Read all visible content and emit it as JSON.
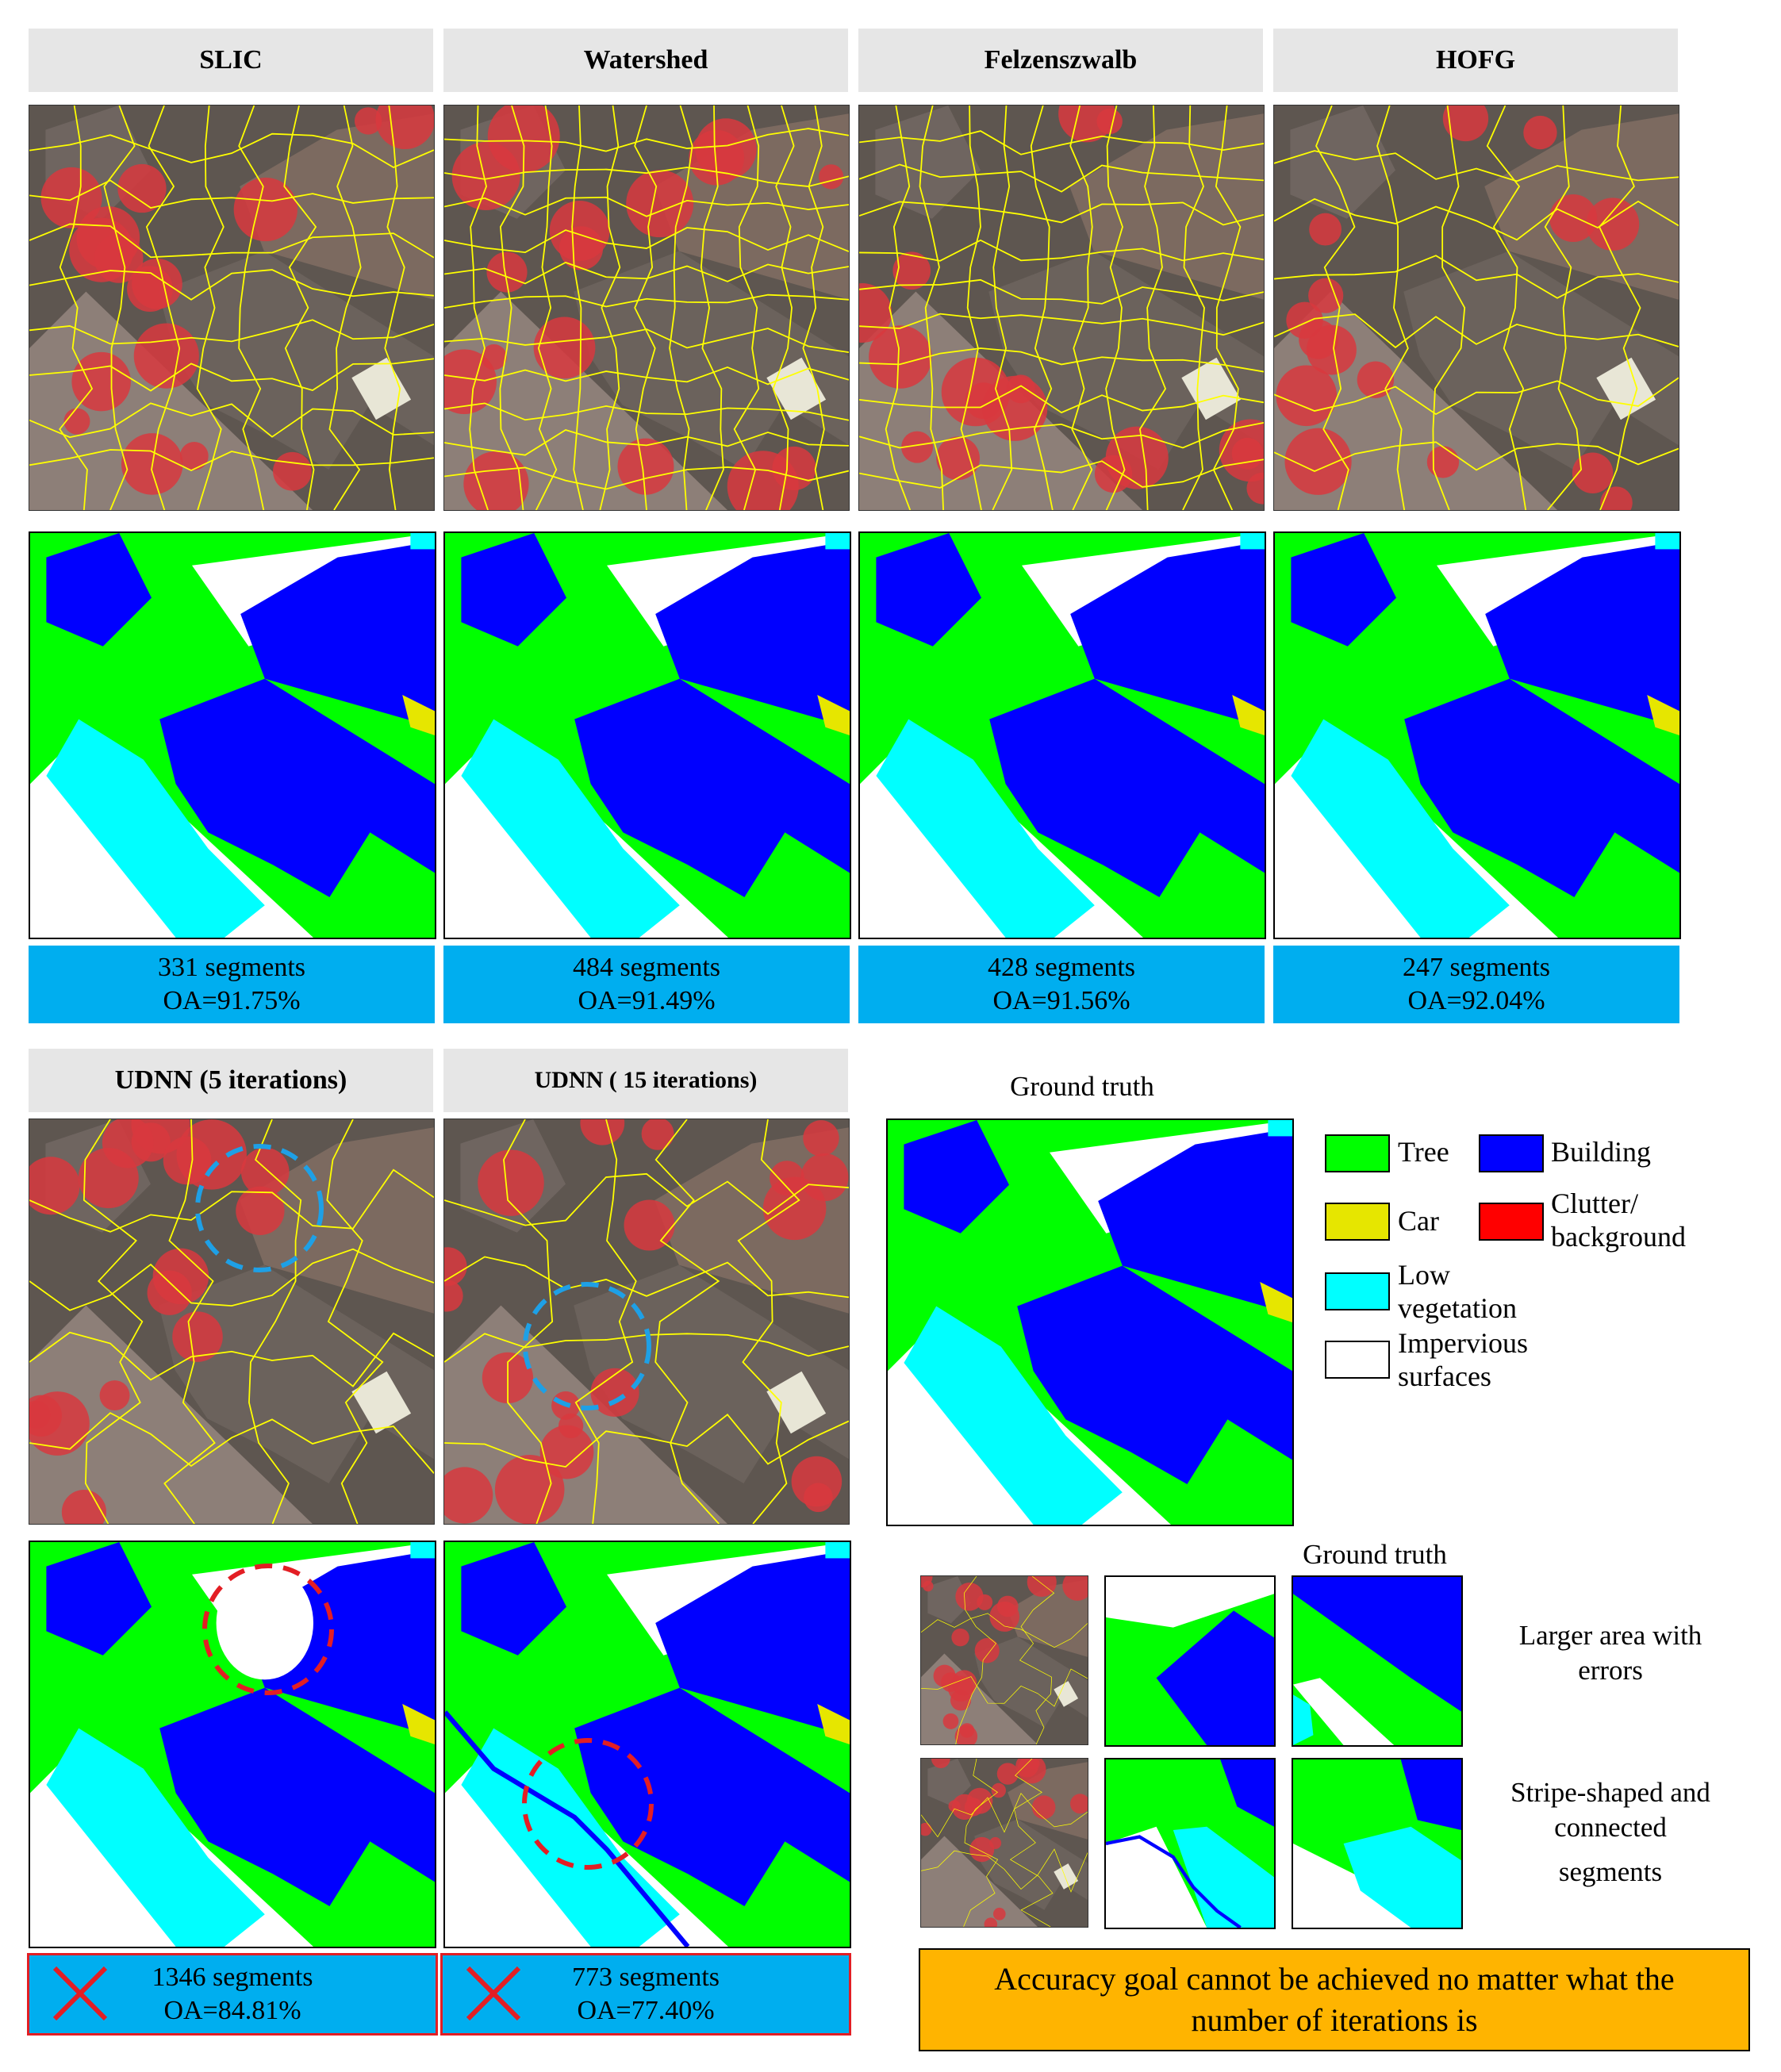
{
  "methods": [
    {
      "name": "SLIC",
      "segments": "331 segments",
      "oa": "OA=91.75%"
    },
    {
      "name": "Watershed",
      "segments": "484 segments",
      "oa": "OA=91.49%"
    },
    {
      "name": "Felzenszwalb",
      "segments": "428 segments",
      "oa": "OA=91.56%"
    },
    {
      "name": "HOFG",
      "segments": "247 segments",
      "oa": "OA=92.04%"
    }
  ],
  "udnn": [
    {
      "name": "UDNN (5 iterations)",
      "segments": "1346 segments",
      "oa": "OA=84.81%"
    },
    {
      "name": "UDNN ( 15 iterations)",
      "segments": "773 segments",
      "oa": "OA=77.40%"
    }
  ],
  "ground_truth_label": "Ground truth",
  "legend": {
    "tree": "Tree",
    "building": "Building",
    "car": "Car",
    "clutter_line1": "Clutter/",
    "clutter_line2": "background",
    "low_veg_line1": "Low",
    "low_veg_line2": "vegetation",
    "imperv_line1": "Impervious",
    "imperv_line2": "surfaces"
  },
  "colors": {
    "tree": "#00ff00",
    "building": "#0000ff",
    "car": "#e6e600",
    "clutter": "#ff0000",
    "low_vegetation": "#00ffff",
    "impervious": "#ffffff",
    "stat_bg": "#00aeef",
    "goal_bg": "#ffb400",
    "error_mark": "#e31e24"
  },
  "zoom": {
    "ground_truth_label": "Ground truth",
    "note1_line1": "Larger area with",
    "note1_line2": "errors",
    "note2_line1": "Stripe-shaped and",
    "note2_line2": "connected",
    "note2_line3": "segments"
  },
  "goal_line1": "Accuracy goal cannot be achieved no matter what the",
  "goal_line2": "number of iterations is"
}
